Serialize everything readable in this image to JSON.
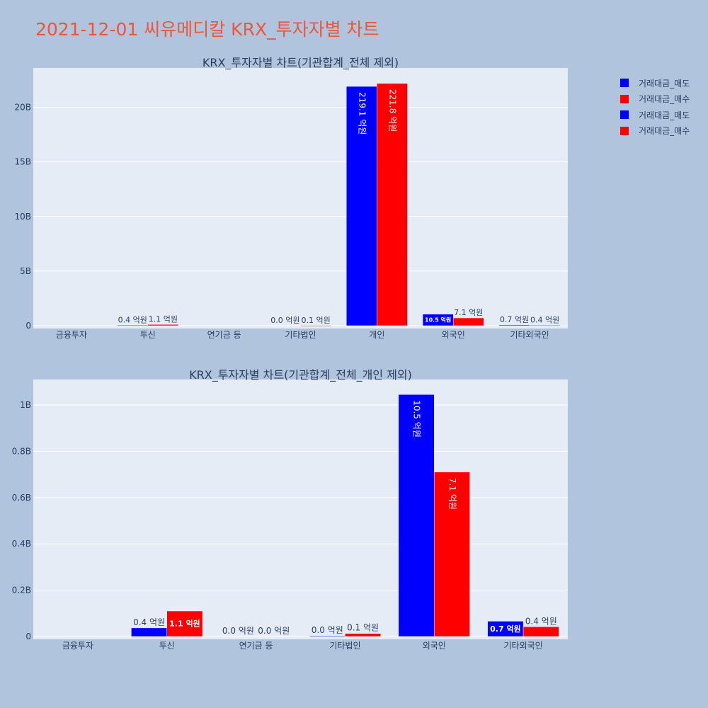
{
  "title": "2021-12-01 씨유메디칼 KRX_투자자별 차트",
  "legend": [
    {
      "name": "거래대금_매도",
      "color": "#0000ff"
    },
    {
      "name": "거래대금_매수",
      "color": "#ff0000"
    },
    {
      "name": "거래대금_매도",
      "color": "#0000ff"
    },
    {
      "name": "거래대금_매수",
      "color": "#ff0000"
    }
  ],
  "chart_data": [
    {
      "type": "bar",
      "title": "KRX_투자자별 차트(기관합계_전체 제외)",
      "categories": [
        "금융투자",
        "투신",
        "연기금 등",
        "기타법인",
        "개인",
        "외국인",
        "기타외국인"
      ],
      "ylim": [
        0,
        23600000000
      ],
      "yticks": [
        0,
        5000000000,
        10000000000,
        15000000000,
        20000000000
      ],
      "ytick_labels": [
        "0",
        "5B",
        "10B",
        "15B",
        "20B"
      ],
      "series": [
        {
          "name": "거래대금_매도",
          "color": "#0000ff",
          "values": [
            0,
            40000000,
            0,
            0,
            21910000000,
            1050000000,
            70000000
          ],
          "labels": [
            "",
            "0.4 억원",
            "",
            "0.0 억원",
            "219.1 억원",
            "10.5 억원",
            "0.7 억원"
          ]
        },
        {
          "name": "거래대금_매수",
          "color": "#ff0000",
          "values": [
            0,
            110000000,
            0,
            10000000,
            22180000000,
            710000000,
            40000000
          ],
          "labels": [
            "",
            "1.1 억원",
            "",
            "0.1 억원",
            "221.8 억원",
            "7.1 억원",
            "0.4 억원"
          ]
        }
      ]
    },
    {
      "type": "bar",
      "title": "KRX_투자자별 차트(기관합계_전체_개인 제외)",
      "categories": [
        "금융투자",
        "투신",
        "연기금 등",
        "기타법인",
        "외국인",
        "기타외국인"
      ],
      "ylim": [
        0,
        1110000000
      ],
      "yticks": [
        0,
        200000000,
        400000000,
        600000000,
        800000000,
        1000000000
      ],
      "ytick_labels": [
        "0",
        "0.2B",
        "0.4B",
        "0.6B",
        "0.8B",
        "1B"
      ],
      "series": [
        {
          "name": "거래대금_매도",
          "color": "#0000ff",
          "values": [
            0,
            37000000,
            0,
            3000000,
            1045000000,
            66000000
          ],
          "labels": [
            "",
            "0.4 억원",
            "0.0 억원",
            "0.0 억원",
            "10.5 억원",
            "0.7 억원"
          ]
        },
        {
          "name": "거래대금_매수",
          "color": "#ff0000",
          "values": [
            0,
            110000000,
            0,
            13000000,
            710000000,
            42000000
          ],
          "labels": [
            "",
            "1.1 억원",
            "0.0 억원",
            "0.1 억원",
            "7.1 억원",
            "0.4 억원"
          ]
        }
      ]
    }
  ]
}
